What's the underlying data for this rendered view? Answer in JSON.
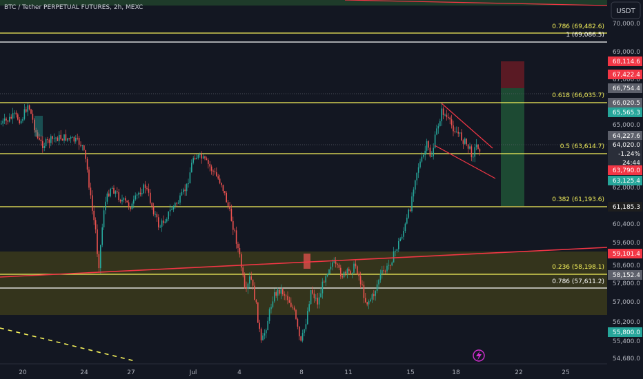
{
  "header": {
    "title": "BTC / Tether PERPETUAL FUTURES, 2h, MEXC",
    "currency": "USDT"
  },
  "colors": {
    "background": "#131722",
    "up_candle": "#26a69a",
    "down_candle": "#ef5350",
    "fib_line": "#f7f35b",
    "fib_text": "#f7f35b",
    "trend_line": "#f23645",
    "axis_text": "#b2b5be",
    "zone_fill": "#3b3a1b",
    "target_zone": "#1d4a33",
    "stop_zone": "#5a1a24"
  },
  "price_axis": {
    "ticks": [
      "70,000.0",
      "69,000.0",
      "67,000.0",
      "65,000.0",
      "62,000.0",
      "60,400.0",
      "59,600.0",
      "58,600.0",
      "57,800.0",
      "57,000.0",
      "56,200.0",
      "55,400.0",
      "54,680.0"
    ]
  },
  "price_badges": [
    {
      "text": "68,114.6",
      "color": "#f23645"
    },
    {
      "text": "67,422.4",
      "color": "#f23645"
    },
    {
      "text": "66,754.4",
      "color": "#5d606b"
    },
    {
      "text": "66,020.5",
      "color": "#5d606b"
    },
    {
      "text": "65,565.3",
      "color": "#26a69a"
    },
    {
      "text": "64,227.6",
      "color": "#5d606b"
    },
    {
      "text": "64,020.0",
      "color": "#5d606b"
    },
    {
      "text": "-1.24%",
      "color": "#5d606b"
    },
    {
      "text": "24:44",
      "color": "#5d606b"
    },
    {
      "text": "63,790.0",
      "color": "#f23645"
    },
    {
      "text": "63,125.4",
      "color": "#26a69a"
    },
    {
      "text": "61,185.3",
      "color": "#1e1e1e"
    },
    {
      "text": "59,101.4",
      "color": "#f23645"
    },
    {
      "text": "58,152.4",
      "color": "#5d606b"
    },
    {
      "text": "55,800.0",
      "color": "#26a69a"
    }
  ],
  "fib_labels": [
    {
      "text": "0.786 (69,482.6)",
      "color": "#f7f35b"
    },
    {
      "text": "1 (69,086.5)",
      "color": "#ffffff"
    },
    {
      "text": "0.618 (66,035.7)",
      "color": "#f7f35b"
    },
    {
      "text": "0.5 (63,614.7)",
      "color": "#f7f35b"
    },
    {
      "text": "0.382 (61,193.6)",
      "color": "#f7f35b"
    },
    {
      "text": "0.236 (58,198.1)",
      "color": "#f7f35b"
    },
    {
      "text": "0.786 (57,611.2)",
      "color": "#ffffff"
    }
  ],
  "time_axis": {
    "ticks": [
      "20",
      "24",
      "27",
      "Jul",
      "4",
      "8",
      "11",
      "15",
      "18",
      "22",
      "25"
    ]
  },
  "icons": {
    "flash": "lightning-icon"
  }
}
